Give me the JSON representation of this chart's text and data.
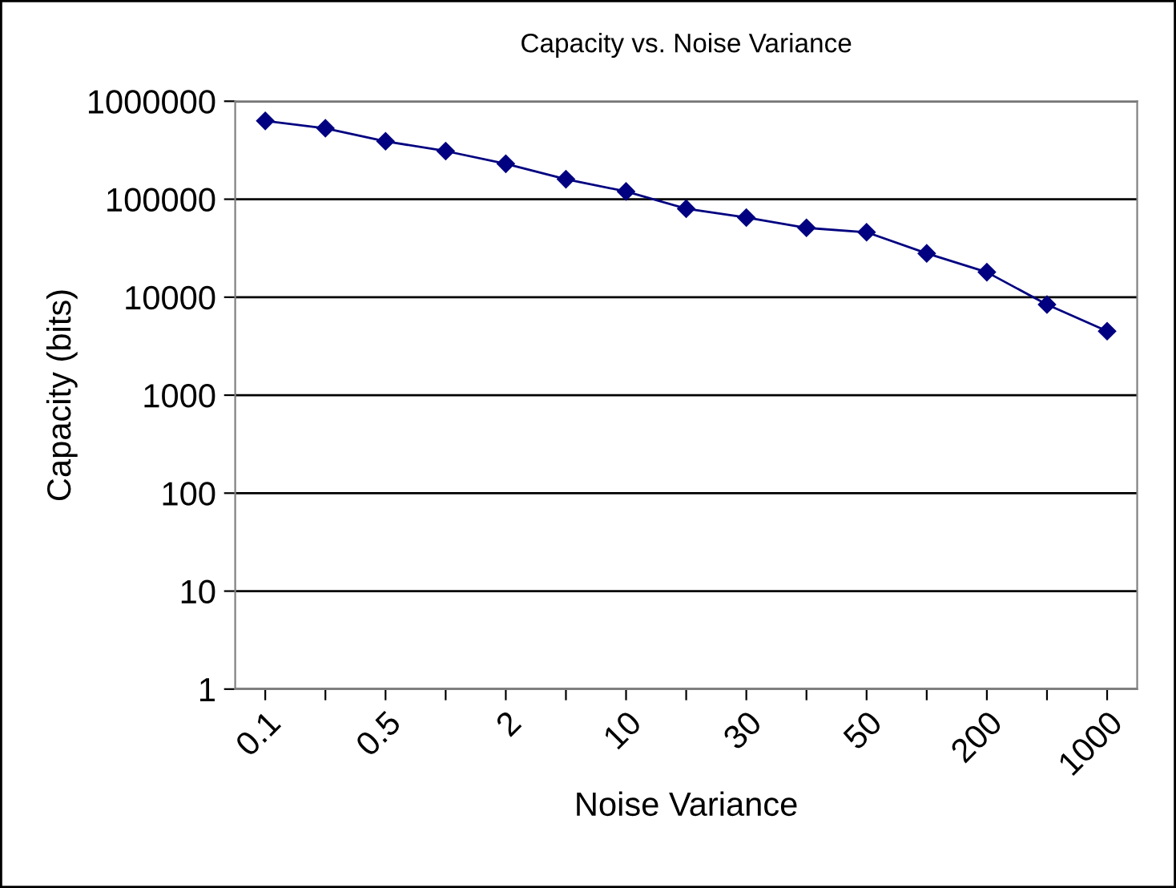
{
  "chart_data": {
    "type": "line",
    "title": "Capacity vs. Noise Variance",
    "xlabel": "Noise Variance",
    "ylabel": "Capacity (bits)",
    "categories": [
      "0.1",
      null,
      "0.5",
      null,
      "2",
      null,
      "10",
      null,
      "30",
      null,
      "50",
      null,
      "200",
      null,
      "1000"
    ],
    "series": [
      {
        "color": "#000080",
        "values": [
          630000,
          530000,
          390000,
          310000,
          230000,
          160000,
          120000,
          80000,
          65000,
          51000,
          46000,
          28000,
          18000,
          8400,
          4500
        ]
      }
    ],
    "log": "y",
    "ylim": [
      1,
      1000000
    ],
    "yticks": [
      1,
      10,
      100,
      1000,
      10000,
      100000,
      1000000
    ],
    "grid": "y",
    "marker": "diamond",
    "line_style": "solid",
    "legend": false
  }
}
